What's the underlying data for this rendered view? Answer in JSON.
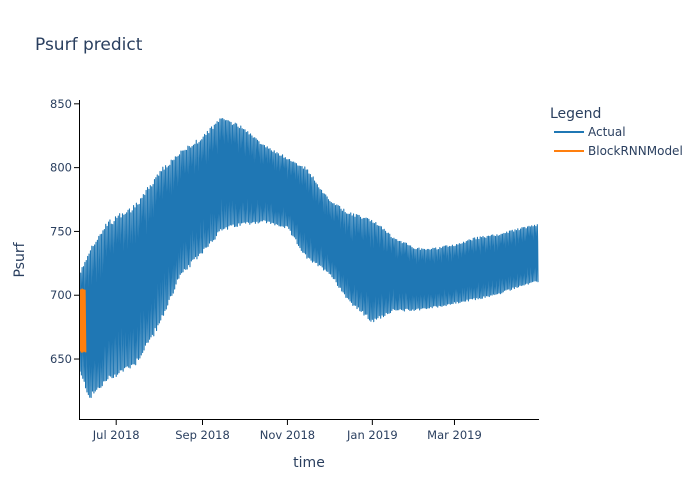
{
  "chart_data": {
    "type": "line",
    "title": "Psurf predict",
    "xlabel": "time",
    "ylabel": "Psurf",
    "x_range": [
      "2018-06-05",
      "2019-04-30"
    ],
    "ylim": [
      603,
      853
    ],
    "y_ticks": [
      650,
      700,
      750,
      800,
      850
    ],
    "x_ticks": [
      {
        "date": "2018-07-01",
        "label": "Jul 2018"
      },
      {
        "date": "2018-09-01",
        "label": "Sep 2018"
      },
      {
        "date": "2018-11-01",
        "label": "Nov 2018"
      },
      {
        "date": "2019-01-01",
        "label": "Jan 2019"
      },
      {
        "date": "2019-03-01",
        "label": "Mar 2019"
      }
    ],
    "grid": false,
    "legend": {
      "title": "Legend",
      "position": "top-right"
    },
    "series": [
      {
        "name": "Actual",
        "color": "#1f77b4",
        "style": "dense oscillating band",
        "band": [
          {
            "date": "2018-06-05",
            "low": 638,
            "high": 718
          },
          {
            "date": "2018-06-12",
            "low": 618,
            "high": 738
          },
          {
            "date": "2018-06-25",
            "low": 632,
            "high": 758
          },
          {
            "date": "2018-07-15",
            "low": 645,
            "high": 772
          },
          {
            "date": "2018-08-01",
            "low": 675,
            "high": 798
          },
          {
            "date": "2018-08-15",
            "low": 712,
            "high": 812
          },
          {
            "date": "2018-09-01",
            "low": 733,
            "high": 825
          },
          {
            "date": "2018-09-15",
            "low": 750,
            "high": 840
          },
          {
            "date": "2018-10-01",
            "low": 755,
            "high": 832
          },
          {
            "date": "2018-10-15",
            "low": 757,
            "high": 818
          },
          {
            "date": "2018-11-01",
            "low": 752,
            "high": 808
          },
          {
            "date": "2018-11-15",
            "low": 728,
            "high": 800
          },
          {
            "date": "2018-12-01",
            "low": 717,
            "high": 775
          },
          {
            "date": "2018-12-15",
            "low": 695,
            "high": 765
          },
          {
            "date": "2019-01-01",
            "low": 678,
            "high": 760
          },
          {
            "date": "2019-01-15",
            "low": 687,
            "high": 747
          },
          {
            "date": "2019-02-01",
            "low": 688,
            "high": 737
          },
          {
            "date": "2019-02-15",
            "low": 690,
            "high": 737
          },
          {
            "date": "2019-03-01",
            "low": 693,
            "high": 740
          },
          {
            "date": "2019-03-15",
            "low": 696,
            "high": 745
          },
          {
            "date": "2019-04-01",
            "low": 700,
            "high": 748
          },
          {
            "date": "2019-04-15",
            "low": 706,
            "high": 752
          },
          {
            "date": "2019-04-30",
            "low": 710,
            "high": 756
          }
        ]
      },
      {
        "name": "BlockRNNModel",
        "color": "#ff7f0e",
        "style": "dense oscillating band",
        "band": [
          {
            "date": "2018-06-05",
            "low": 655,
            "high": 705
          },
          {
            "date": "2018-06-09",
            "low": 655,
            "high": 705
          }
        ]
      }
    ]
  }
}
